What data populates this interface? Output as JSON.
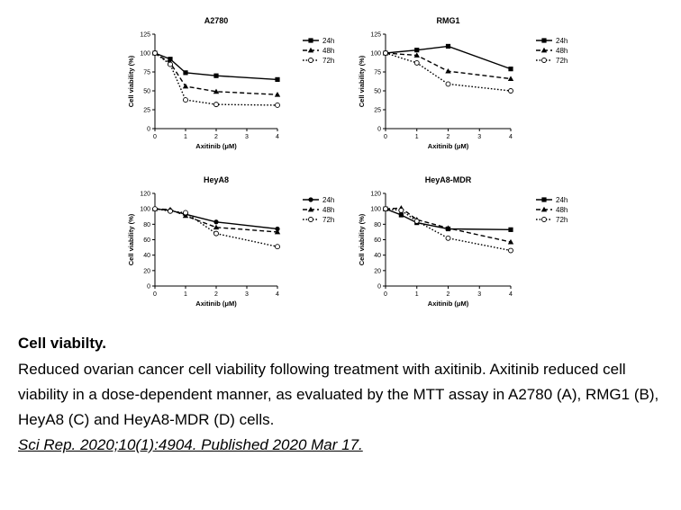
{
  "chart_data": [
    {
      "type": "line",
      "title": "A2780",
      "xlabel": "Axitinib (μM)",
      "ylabel": "Cell viability (%)",
      "xlim": [
        0,
        4
      ],
      "ylim": [
        0,
        125
      ],
      "xticks": [
        0,
        1,
        2,
        3,
        4
      ],
      "yticks": [
        0,
        25,
        50,
        75,
        100,
        125
      ],
      "legend": "right",
      "x": [
        0,
        0.5,
        1,
        2,
        4
      ],
      "series": [
        {
          "name": "24h",
          "marker": "square",
          "dash": "solid",
          "values": [
            100,
            92,
            74,
            70,
            65
          ]
        },
        {
          "name": "48h",
          "marker": "triangle",
          "dash": "dashed",
          "values": [
            100,
            87,
            56,
            49,
            45
          ]
        },
        {
          "name": "72h",
          "marker": "circle",
          "dash": "dotted",
          "values": [
            100,
            85,
            38,
            32,
            31
          ]
        }
      ]
    },
    {
      "type": "line",
      "title": "RMG1",
      "xlabel": "Axitinib (μM)",
      "ylabel": "Cell viability (%)",
      "xlim": [
        0,
        4
      ],
      "ylim": [
        0,
        125
      ],
      "xticks": [
        0,
        1,
        2,
        3,
        4
      ],
      "yticks": [
        0,
        25,
        50,
        75,
        100,
        125
      ],
      "legend": "right",
      "x": [
        0,
        1,
        2,
        4
      ],
      "series": [
        {
          "name": "24h",
          "marker": "square",
          "dash": "solid",
          "values": [
            100,
            104,
            109,
            79
          ]
        },
        {
          "name": "48h",
          "marker": "triangle",
          "dash": "dashed",
          "values": [
            100,
            97,
            76,
            66
          ]
        },
        {
          "name": "72h",
          "marker": "circle",
          "dash": "dotted",
          "values": [
            100,
            87,
            59,
            50
          ]
        }
      ]
    },
    {
      "type": "line",
      "title": "HeyA8",
      "xlabel": "Axitinib (μM)",
      "ylabel": "Cell viability (%)",
      "xlim": [
        0,
        4
      ],
      "ylim": [
        0,
        120
      ],
      "xticks": [
        0,
        1,
        2,
        3,
        4
      ],
      "yticks": [
        0,
        20,
        40,
        60,
        80,
        100,
        120
      ],
      "legend": "right",
      "x": [
        0,
        0.5,
        1,
        2,
        4
      ],
      "series": [
        {
          "name": "24h",
          "marker": "circle-filled",
          "dash": "solid",
          "values": [
            100,
            98,
            93,
            83,
            74
          ]
        },
        {
          "name": "48h",
          "marker": "triangle",
          "dash": "dashed",
          "values": [
            100,
            99,
            91,
            76,
            70
          ]
        },
        {
          "name": "72h",
          "marker": "circle",
          "dash": "dotted",
          "values": [
            100,
            97,
            95,
            68,
            51
          ]
        }
      ]
    },
    {
      "type": "line",
      "title": "HeyA8-MDR",
      "xlabel": "Axitinib (μM)",
      "ylabel": "Cell viability (%)",
      "xlim": [
        0,
        4
      ],
      "ylim": [
        0,
        120
      ],
      "xticks": [
        0,
        1,
        2,
        3,
        4
      ],
      "yticks": [
        0,
        20,
        40,
        60,
        80,
        100,
        120
      ],
      "legend": "right",
      "x": [
        0,
        0.5,
        1,
        2,
        4
      ],
      "series": [
        {
          "name": "24h",
          "marker": "square",
          "dash": "solid",
          "values": [
            100,
            92,
            82,
            74,
            73
          ]
        },
        {
          "name": "48h",
          "marker": "triangle",
          "dash": "dashed",
          "values": [
            100,
            101,
            86,
            75,
            57
          ]
        },
        {
          "name": "72h",
          "marker": "circle",
          "dash": "dotted",
          "values": [
            100,
            98,
            84,
            62,
            46
          ]
        }
      ]
    }
  ],
  "caption": {
    "title": "Cell viabilty.",
    "body": "Reduced ovarian cancer cell viability following treatment with axitinib. Axitinib reduced cell viability in a dose-dependent manner, as evaluated by the MTT assay in A2780 (A), RMG1 (B), HeyA8 (C) and HeyA8-MDR (D) cells.",
    "citation": "Sci Rep. 2020;10(1):4904. Published 2020 Mar 17."
  }
}
